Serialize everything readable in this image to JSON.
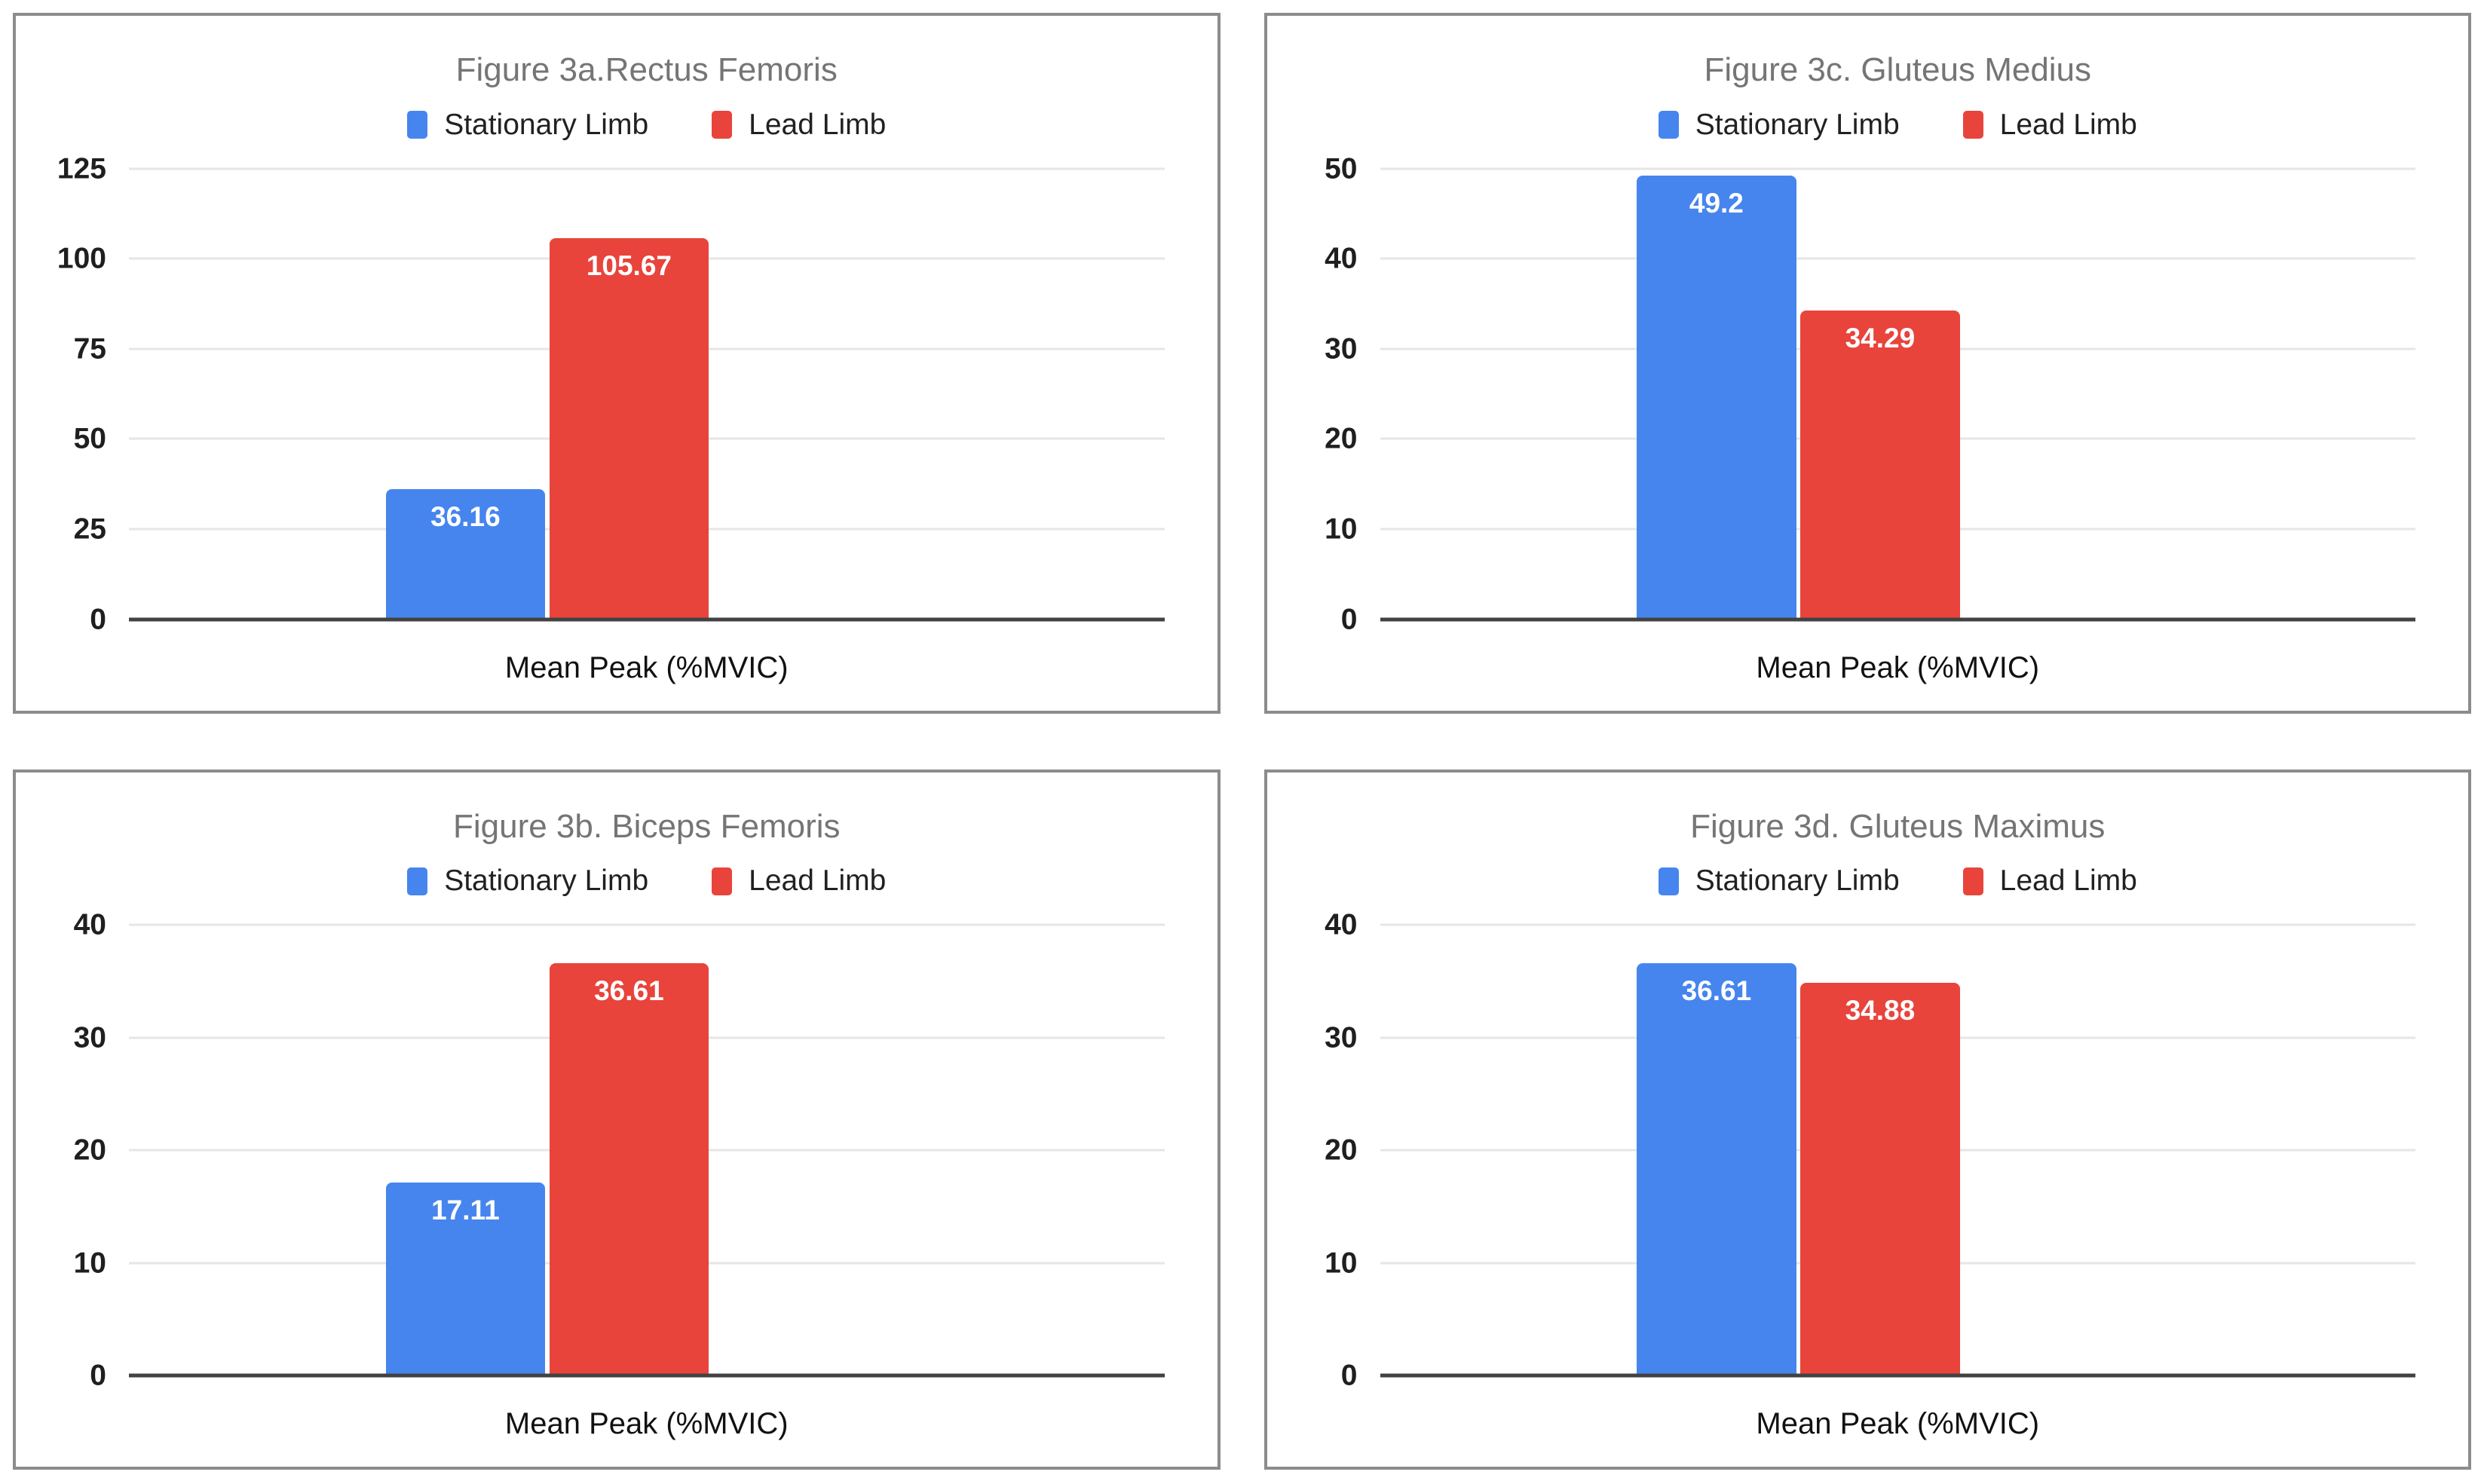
{
  "page": {
    "background": "#ffffff"
  },
  "colors": {
    "series": [
      "#4685EE",
      "#E8443C"
    ],
    "card_border": "#8c8c8c",
    "title_text": "#757575",
    "gridline": "#e6e6e6",
    "axis_line": "#424242",
    "bar_value_text": "#ffffff"
  },
  "legend": {
    "items": [
      {
        "label": "Stationary Limb",
        "color": "#4685EE"
      },
      {
        "label": "Lead Limb",
        "color": "#E8443C"
      }
    ]
  },
  "chart_data": [
    {
      "type": "bar",
      "title": "Figure 3a.Rectus Femoris",
      "xlabel": "Mean Peak (%MVIC)",
      "categories": [
        "Mean Peak (%MVIC)"
      ],
      "series": [
        {
          "name": "Stationary Limb",
          "values": [
            36.16
          ]
        },
        {
          "name": "Lead Limb",
          "values": [
            105.67
          ]
        }
      ],
      "ylim": [
        0,
        125
      ],
      "yticks": [
        0,
        25,
        50,
        75,
        100,
        125
      ],
      "grid": true,
      "legend_position": "top"
    },
    {
      "type": "bar",
      "title": "Figure 3c. Gluteus Medius",
      "xlabel": "Mean Peak (%MVIC)",
      "categories": [
        "Mean Peak (%MVIC)"
      ],
      "series": [
        {
          "name": "Stationary Limb",
          "values": [
            49.2
          ]
        },
        {
          "name": "Lead Limb",
          "values": [
            34.29
          ]
        }
      ],
      "ylim": [
        0,
        50
      ],
      "yticks": [
        0,
        10,
        20,
        30,
        40,
        50
      ],
      "grid": true,
      "legend_position": "top"
    },
    {
      "type": "bar",
      "title": "Figure 3b. Biceps Femoris",
      "xlabel": "Mean Peak (%MVIC)",
      "categories": [
        "Mean Peak (%MVIC)"
      ],
      "series": [
        {
          "name": "Stationary Limb",
          "values": [
            17.11
          ]
        },
        {
          "name": "Lead Limb",
          "values": [
            36.61
          ]
        }
      ],
      "ylim": [
        0,
        40
      ],
      "yticks": [
        0,
        10,
        20,
        30,
        40
      ],
      "grid": true,
      "legend_position": "top"
    },
    {
      "type": "bar",
      "title": "Figure 3d. Gluteus Maximus",
      "xlabel": "Mean Peak (%MVIC)",
      "categories": [
        "Mean Peak (%MVIC)"
      ],
      "series": [
        {
          "name": "Stationary Limb",
          "values": [
            36.61
          ]
        },
        {
          "name": "Lead Limb",
          "values": [
            34.88
          ]
        }
      ],
      "ylim": [
        0,
        40
      ],
      "yticks": [
        0,
        10,
        20,
        30,
        40
      ],
      "grid": true,
      "legend_position": "top"
    }
  ]
}
